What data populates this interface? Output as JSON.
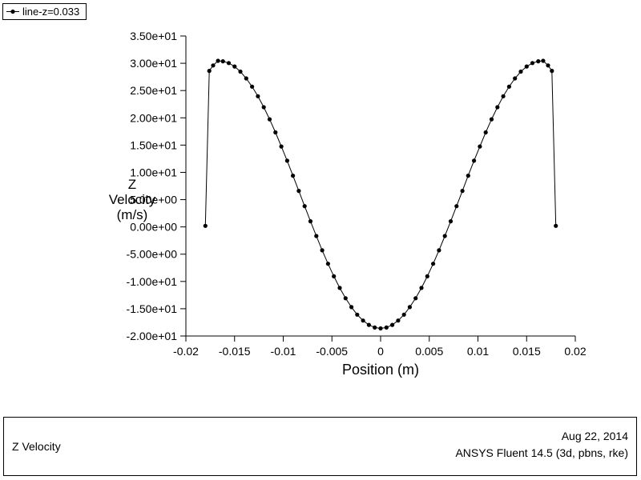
{
  "window": {
    "background": "#ffffff"
  },
  "legend": {
    "label": "line-z=0.033",
    "marker": "filled-circle"
  },
  "footer": {
    "title": "Z Velocity",
    "date": "Aug 22, 2014",
    "solver": "ANSYS Fluent 14.5 (3d, pbns, rke)"
  },
  "chart_data": {
    "type": "line",
    "title": "",
    "xlabel": "Position (m)",
    "ylabel": "Z Velocity (m/s)",
    "ylabel_lines": [
      "Z",
      "Velocity",
      "(m/s)"
    ],
    "xlim": [
      -0.02,
      0.02
    ],
    "ylim": [
      -20,
      35
    ],
    "grid": false,
    "legend_position": "top-left",
    "marker": "filled-circle",
    "colors": {
      "line": "#000000",
      "marker": "#000000",
      "axis": "#000000",
      "text": "#000000"
    },
    "x_ticks": [
      -0.02,
      -0.015,
      -0.01,
      -0.005,
      0,
      0.005,
      0.01,
      0.015,
      0.02
    ],
    "x_tick_labels": [
      "-0.02",
      "-0.015",
      "-0.01",
      "-0.005",
      "0",
      "0.005",
      "0.01",
      "0.015",
      "0.02"
    ],
    "y_ticks": [
      35,
      30,
      25,
      20,
      15,
      10,
      5,
      0,
      -5,
      -10,
      -15,
      -20
    ],
    "y_tick_labels": [
      "3.50e+01",
      "3.00e+01",
      "2.50e+01",
      "2.00e+01",
      "1.50e+01",
      "1.00e+01",
      "5.00e+00",
      "0.00e+00",
      "-5.00e+00",
      "-1.00e+01",
      "-1.50e+01",
      "-2.00e+01"
    ],
    "series": [
      {
        "name": "line-z=0.033",
        "points": [
          [
            -0.018,
            0.2
          ],
          [
            -0.0176,
            28.6
          ],
          [
            -0.0172,
            29.6
          ],
          [
            -0.0167,
            30.45
          ],
          [
            -0.0162,
            30.36
          ],
          [
            -0.0156,
            30.04
          ],
          [
            -0.015,
            29.41
          ],
          [
            -0.0144,
            28.47
          ],
          [
            -0.0138,
            27.23
          ],
          [
            -0.0132,
            25.72
          ],
          [
            -0.0126,
            23.95
          ],
          [
            -0.012,
            21.95
          ],
          [
            -0.0114,
            19.73
          ],
          [
            -0.0108,
            17.33
          ],
          [
            -0.0102,
            14.75
          ],
          [
            -0.0096,
            12.14
          ],
          [
            -0.009,
            9.39
          ],
          [
            -0.0084,
            6.6
          ],
          [
            -0.0078,
            3.8
          ],
          [
            -0.0072,
            1.03
          ],
          [
            -0.0066,
            -1.67
          ],
          [
            -0.006,
            -4.29
          ],
          [
            -0.0054,
            -6.76
          ],
          [
            -0.0048,
            -9.06
          ],
          [
            -0.0042,
            -11.18
          ],
          [
            -0.0036,
            -13.07
          ],
          [
            -0.003,
            -14.71
          ],
          [
            -0.0024,
            -16.09
          ],
          [
            -0.0018,
            -17.17
          ],
          [
            -0.0012,
            -17.96
          ],
          [
            -0.0006,
            -18.44
          ],
          [
            0.0,
            -18.6
          ],
          [
            0.0006,
            -18.44
          ],
          [
            0.0012,
            -17.96
          ],
          [
            0.0018,
            -17.17
          ],
          [
            0.0024,
            -16.09
          ],
          [
            0.003,
            -14.71
          ],
          [
            0.0036,
            -13.07
          ],
          [
            0.0042,
            -11.18
          ],
          [
            0.0048,
            -9.06
          ],
          [
            0.0054,
            -6.76
          ],
          [
            0.006,
            -4.29
          ],
          [
            0.0066,
            -1.67
          ],
          [
            0.0072,
            1.03
          ],
          [
            0.0078,
            3.8
          ],
          [
            0.0084,
            6.6
          ],
          [
            0.009,
            9.39
          ],
          [
            0.0096,
            12.14
          ],
          [
            0.0102,
            14.75
          ],
          [
            0.0108,
            17.33
          ],
          [
            0.0114,
            19.73
          ],
          [
            0.012,
            21.95
          ],
          [
            0.0126,
            23.95
          ],
          [
            0.0132,
            25.72
          ],
          [
            0.0138,
            27.23
          ],
          [
            0.0144,
            28.47
          ],
          [
            0.015,
            29.41
          ],
          [
            0.0156,
            30.04
          ],
          [
            0.0162,
            30.36
          ],
          [
            0.0167,
            30.45
          ],
          [
            0.0172,
            29.6
          ],
          [
            0.0176,
            28.6
          ],
          [
            0.018,
            0.2
          ]
        ]
      }
    ]
  }
}
